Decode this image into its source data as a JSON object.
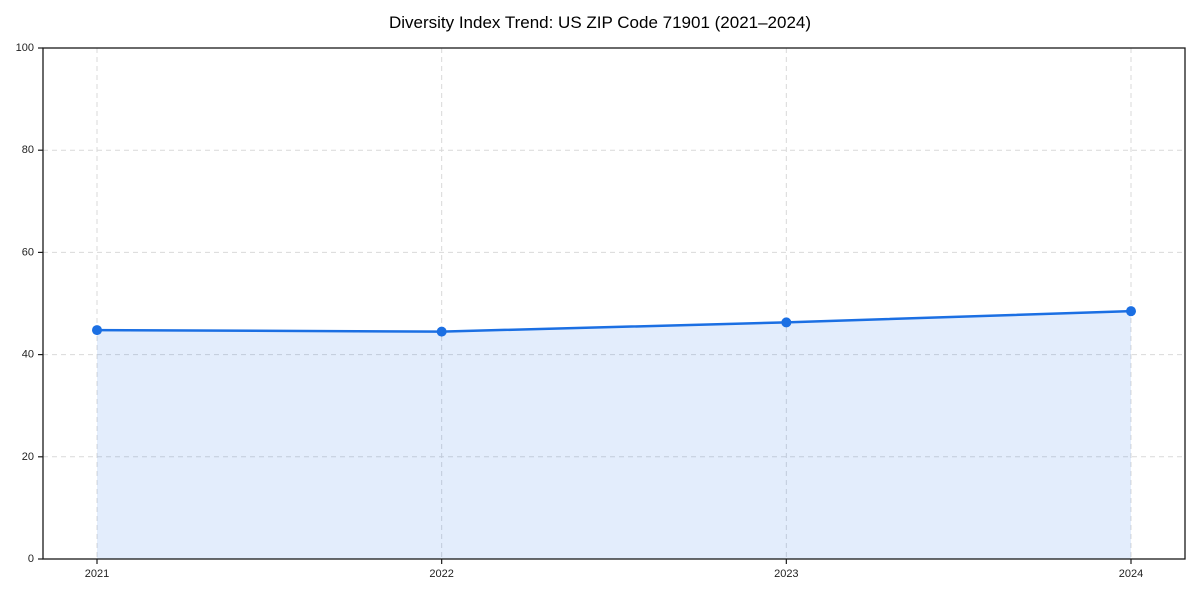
{
  "page": {
    "background": "#ffffff"
  },
  "chart_data": {
    "type": "line",
    "title": "Diversity Index Trend: US ZIP Code 71901 (2021–2024)",
    "x": [
      2021,
      2022,
      2023,
      2024
    ],
    "xtick_labels": [
      "2021",
      "2022",
      "2023",
      "2024"
    ],
    "series": [
      {
        "name": "Diversity Index",
        "values": [
          44.8,
          44.5,
          46.3,
          48.5
        ]
      }
    ],
    "xlabel": "",
    "ylabel": "",
    "ylim": [
      0,
      100
    ],
    "yticks": [
      0,
      20,
      40,
      60,
      80,
      100
    ],
    "grid": true,
    "grid_style": "dashed",
    "legend": "none",
    "marker": "circle",
    "area_fill": true,
    "colors": {
      "line": "#1b6fe3",
      "marker": "#1b6fe3",
      "area": "rgba(27, 111, 227, 0.12)",
      "grid": "#d9d9d9",
      "spine": "#1a1a1a",
      "tick_label": "#1f1f1f",
      "title": "#000000",
      "plot_background": "#ffffff"
    }
  }
}
